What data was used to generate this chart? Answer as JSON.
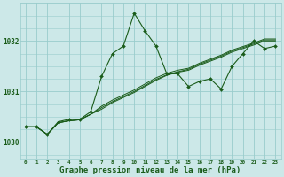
{
  "bg_color": "#cce8e8",
  "grid_color": "#99cccc",
  "line_color": "#1a5c1a",
  "marker_color": "#1a5c1a",
  "xlabel": "Graphe pression niveau de la mer (hPa)",
  "xlabel_fontsize": 6.5,
  "xlim": [
    -0.5,
    23.5
  ],
  "ylim": [
    1029.65,
    1032.75
  ],
  "yticks": [
    1030,
    1031,
    1032
  ],
  "xticks": [
    0,
    1,
    2,
    3,
    4,
    5,
    6,
    7,
    8,
    9,
    10,
    11,
    12,
    13,
    14,
    15,
    16,
    17,
    18,
    19,
    20,
    21,
    22,
    23
  ],
  "series": [
    [
      1030.3,
      1030.3,
      1030.15,
      1030.4,
      1030.45,
      1030.45,
      1030.6,
      1031.3,
      1031.75,
      1031.9,
      1032.55,
      1032.2,
      1031.9,
      1031.35,
      1031.35,
      1031.1,
      1031.2,
      1031.25,
      1031.05,
      1031.5,
      1031.75,
      1032.0,
      1031.85,
      1031.9
    ],
    [
      1030.3,
      1030.3,
      1030.15,
      1030.38,
      1030.42,
      1030.44,
      1030.55,
      1030.65,
      1030.78,
      1030.88,
      1030.98,
      1031.1,
      1031.22,
      1031.32,
      1031.38,
      1031.42,
      1031.52,
      1031.6,
      1031.68,
      1031.78,
      1031.85,
      1031.92,
      1032.0,
      1032.0
    ],
    [
      1030.3,
      1030.3,
      1030.15,
      1030.38,
      1030.42,
      1030.44,
      1030.55,
      1030.68,
      1030.8,
      1030.9,
      1031.0,
      1031.12,
      1031.24,
      1031.33,
      1031.39,
      1031.44,
      1031.54,
      1031.62,
      1031.7,
      1031.8,
      1031.87,
      1031.94,
      1032.02,
      1032.02
    ],
    [
      1030.3,
      1030.3,
      1030.15,
      1030.38,
      1030.42,
      1030.44,
      1030.55,
      1030.71,
      1030.83,
      1030.93,
      1031.03,
      1031.15,
      1031.27,
      1031.36,
      1031.42,
      1031.46,
      1031.56,
      1031.64,
      1031.72,
      1031.82,
      1031.89,
      1031.96,
      1032.04,
      1032.04
    ]
  ],
  "main_series_idx": 0
}
